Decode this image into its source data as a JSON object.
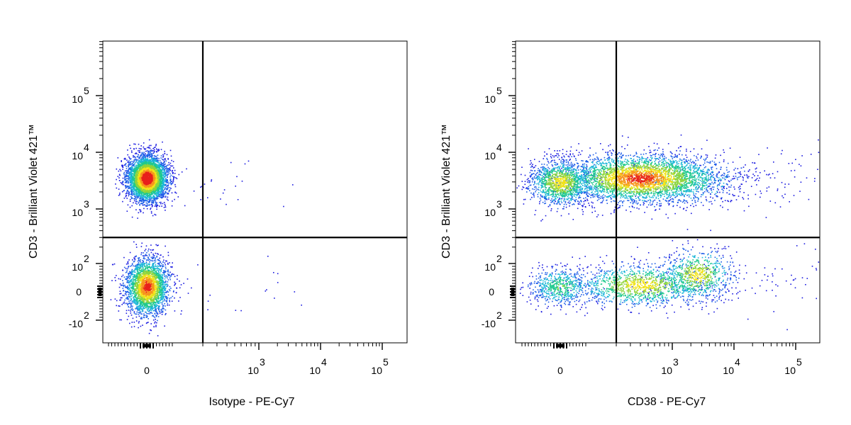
{
  "chart_data": [
    {
      "type": "scatter",
      "subtype": "flow-cytometry-density-dot-plot",
      "xlabel": "Isotype - PE-Cy7",
      "ylabel": "CD3 - Brilliant Violet 421™",
      "x_scale": "biexponential",
      "y_scale": "biexponential",
      "x_ticks": [
        {
          "value": 0,
          "label": "0",
          "exp": ""
        },
        {
          "value": 1000,
          "label": "10",
          "exp": "3"
        },
        {
          "value": 10000,
          "label": "10",
          "exp": "4"
        },
        {
          "value": 100000,
          "label": "10",
          "exp": "5"
        }
      ],
      "y_ticks": [
        {
          "value": -100,
          "label": "-10",
          "exp": "2"
        },
        {
          "value": 0,
          "label": "0",
          "exp": ""
        },
        {
          "value": 100,
          "label": "10",
          "exp": "2"
        },
        {
          "value": 1000,
          "label": "10",
          "exp": "3"
        },
        {
          "value": 10000,
          "label": "10",
          "exp": "4"
        },
        {
          "value": 100000,
          "label": "10",
          "exp": "5"
        }
      ],
      "quadrant_gate": {
        "x": 200,
        "y": 300
      },
      "populations": [
        {
          "center_x": 0,
          "center_y": 3500,
          "density": "very high",
          "points": 4200
        },
        {
          "center_x": 0,
          "center_y": 20,
          "density": "high",
          "points": 2600
        }
      ],
      "grid": false,
      "legend": "none"
    },
    {
      "type": "scatter",
      "subtype": "flow-cytometry-density-dot-plot",
      "xlabel": "CD38 - PE-Cy7",
      "ylabel": "CD3 - Brilliant Violet 421™",
      "x_scale": "biexponential",
      "y_scale": "biexponential",
      "x_ticks": [
        {
          "value": 0,
          "label": "0",
          "exp": ""
        },
        {
          "value": 1000,
          "label": "10",
          "exp": "3"
        },
        {
          "value": 10000,
          "label": "10",
          "exp": "4"
        },
        {
          "value": 100000,
          "label": "10",
          "exp": "5"
        }
      ],
      "y_ticks": [
        {
          "value": -100,
          "label": "-10",
          "exp": "2"
        },
        {
          "value": 0,
          "label": "0",
          "exp": ""
        },
        {
          "value": 100,
          "label": "10",
          "exp": "2"
        },
        {
          "value": 1000,
          "label": "10",
          "exp": "3"
        },
        {
          "value": 10000,
          "label": "10",
          "exp": "4"
        },
        {
          "value": 100000,
          "label": "10",
          "exp": "5"
        }
      ],
      "quadrant_gate": {
        "x": 200,
        "y": 300
      },
      "populations": [
        {
          "center_x": 0,
          "center_y": 3000,
          "density": "medium",
          "points": 1300
        },
        {
          "center_x": 400,
          "center_y": 3500,
          "density": "high",
          "points": 3600
        },
        {
          "center_x": 1800,
          "center_y": 3200,
          "density": "low",
          "points": 300
        },
        {
          "center_x": 0,
          "center_y": 20,
          "density": "low",
          "points": 600
        },
        {
          "center_x": 400,
          "center_y": 25,
          "density": "medium",
          "points": 1200
        },
        {
          "center_x": 2500,
          "center_y": 60,
          "density": "medium",
          "points": 700
        }
      ],
      "grid": false,
      "legend": "none"
    }
  ]
}
